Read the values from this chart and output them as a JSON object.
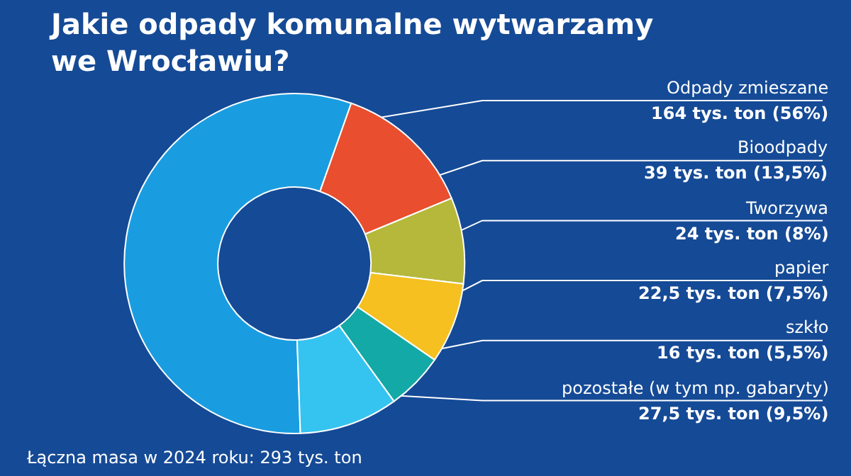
{
  "chart_data": {
    "type": "donut",
    "title": "Jakie odpady komunalne wytwarzamy\nwe Wrocławiu?",
    "categories": [
      "Odpady zmieszane",
      "Bioodpady",
      "Tworzywa",
      "papier",
      "szkło",
      "pozostałe (w tym np. gabaryty)"
    ],
    "values": [
      164,
      39,
      24,
      22.5,
      16,
      27.5
    ],
    "value_labels": [
      "164 tys. ton (56%)",
      "39 tys. ton (13,5%)",
      "24 tys. ton (8%)",
      "22,5 tys. ton (7,5%)",
      "16 tys. ton (5,5%)",
      "27,5 tys. ton (9,5%)"
    ],
    "colors": [
      "#1a9de0",
      "#e94e2e",
      "#b5b83a",
      "#f5c020",
      "#13a9a6",
      "#35c3f0"
    ],
    "annotations": [
      "Łączna masa w 2024 roku: 293 tys. ton"
    ],
    "legend": false
  }
}
